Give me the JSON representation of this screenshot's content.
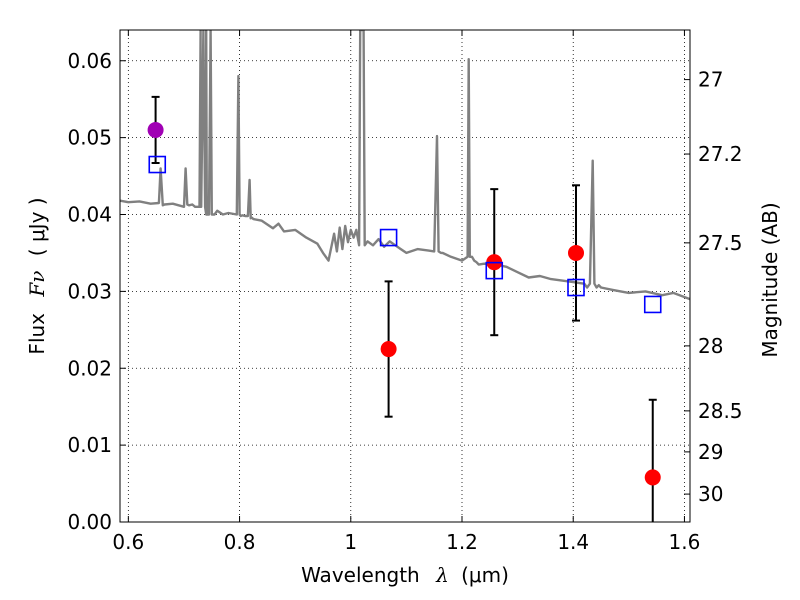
{
  "chart_data": {
    "type": "scatter",
    "xlabel_prefix": "Wavelength",
    "xlabel_symbol": "λ",
    "xlabel_unit": "(μm)",
    "ylabel_prefix": "Flux",
    "ylabel_symbol": "Fν",
    "ylabel_unit": "( μJy )",
    "y2label": "Magnitude (AB)",
    "xlim": [
      0.585,
      1.61
    ],
    "ylim": [
      0.0,
      0.064
    ],
    "grid": true,
    "x_ticks": [
      0.6,
      0.8,
      1.0,
      1.2,
      1.4,
      1.6
    ],
    "x_tick_labels": [
      "0.6",
      "0.8",
      "1",
      "1.2",
      "1.4",
      "1.6"
    ],
    "y_ticks": [
      0.0,
      0.01,
      0.02,
      0.03,
      0.04,
      0.05,
      0.06
    ],
    "y_tick_labels": [
      "0.00",
      "0.01",
      "0.02",
      "0.03",
      "0.04",
      "0.05",
      "0.06"
    ],
    "y2_ticks": [
      27,
      27.2,
      27.5,
      28,
      28.5,
      29,
      30
    ],
    "y2_tick_labels": [
      "27",
      "27.2",
      "27.5",
      "28",
      "28.5",
      "29",
      "30"
    ],
    "colors": {
      "model": "#808080",
      "observed": "#ff0000",
      "observed_special": "#a000b4",
      "model_photometry": "#0000ff"
    },
    "series": [
      {
        "kind": "line",
        "x": [
          0.585,
          0.6,
          0.62,
          0.64,
          0.655,
          0.658,
          0.662,
          0.665,
          0.68,
          0.7,
          0.703,
          0.706,
          0.709,
          0.715,
          0.72,
          0.728,
          0.73,
          0.73,
          0.731,
          0.735,
          0.738,
          0.74,
          0.74,
          0.741,
          0.745,
          0.748,
          0.75,
          0.75,
          0.751,
          0.755,
          0.76,
          0.77,
          0.78,
          0.795,
          0.798,
          0.8,
          0.802,
          0.805,
          0.81,
          0.815,
          0.818,
          0.82,
          0.822,
          0.825,
          0.84,
          0.86,
          0.87,
          0.88,
          0.9,
          0.92,
          0.94,
          0.95,
          0.96,
          0.97,
          0.975,
          0.98,
          0.985,
          0.99,
          0.995,
          1.0,
          1.005,
          1.01,
          1.015,
          1.017,
          1.019,
          1.021,
          1.023,
          1.025,
          1.03,
          1.04,
          1.05,
          1.06,
          1.07,
          1.08,
          1.09,
          1.1,
          1.12,
          1.14,
          1.15,
          1.155,
          1.158,
          1.162,
          1.165,
          1.18,
          1.2,
          1.21,
          1.212,
          1.214,
          1.218,
          1.222,
          1.226,
          1.23,
          1.24,
          1.26,
          1.28,
          1.3,
          1.32,
          1.34,
          1.36,
          1.38,
          1.4,
          1.41,
          1.42,
          1.425,
          1.43,
          1.435,
          1.438,
          1.442,
          1.446,
          1.45,
          1.47,
          1.5,
          1.53,
          1.56,
          1.58,
          1.61
        ],
        "y": [
          0.0418,
          0.0416,
          0.0417,
          0.0414,
          0.0415,
          0.046,
          0.0412,
          0.0413,
          0.0414,
          0.041,
          0.046,
          0.0413,
          0.0412,
          0.0413,
          0.041,
          0.041,
          0.064,
          0.041,
          0.041,
          0.064,
          0.041,
          0.04,
          0.064,
          0.04,
          0.04,
          0.064,
          0.04,
          0.04,
          0.04,
          0.04,
          0.0405,
          0.04,
          0.0402,
          0.04,
          0.058,
          0.04,
          0.0398,
          0.0399,
          0.0398,
          0.0398,
          0.0445,
          0.0395,
          0.0396,
          0.0394,
          0.0392,
          0.0382,
          0.0388,
          0.0378,
          0.038,
          0.037,
          0.0362,
          0.035,
          0.034,
          0.0375,
          0.0352,
          0.0383,
          0.0355,
          0.0385,
          0.0364,
          0.038,
          0.037,
          0.038,
          0.036,
          0.064,
          0.064,
          0.064,
          0.064,
          0.036,
          0.0365,
          0.036,
          0.0368,
          0.0358,
          0.0365,
          0.036,
          0.0355,
          0.035,
          0.0355,
          0.0353,
          0.0352,
          0.0502,
          0.0352,
          0.035,
          0.035,
          0.0345,
          0.034,
          0.0345,
          0.0602,
          0.0345,
          0.0345,
          0.034,
          0.0338,
          0.0335,
          0.0336,
          0.0335,
          0.0332,
          0.0325,
          0.0318,
          0.032,
          0.0316,
          0.0314,
          0.0312,
          0.0311,
          0.031,
          0.0305,
          0.031,
          0.047,
          0.031,
          0.0305,
          0.0308,
          0.0305,
          0.0302,
          0.0298,
          0.03,
          0.0295,
          0.0298,
          0.029
        ]
      },
      {
        "kind": "points_with_errors",
        "points": [
          {
            "x": 0.649,
            "y": 0.051,
            "err": 0.0043,
            "special": true
          },
          {
            "x": 1.068,
            "y": 0.0225,
            "err": 0.0088
          },
          {
            "x": 1.258,
            "y": 0.0338,
            "err": 0.0095
          },
          {
            "x": 1.405,
            "y": 0.035,
            "err": 0.0088
          },
          {
            "x": 1.543,
            "y": 0.0058,
            "err": 0.0101
          }
        ]
      },
      {
        "kind": "squares",
        "x": [
          0.652,
          1.068,
          1.258,
          1.405,
          1.543
        ],
        "y": [
          0.0465,
          0.037,
          0.0327,
          0.0305,
          0.0283
        ]
      }
    ]
  }
}
